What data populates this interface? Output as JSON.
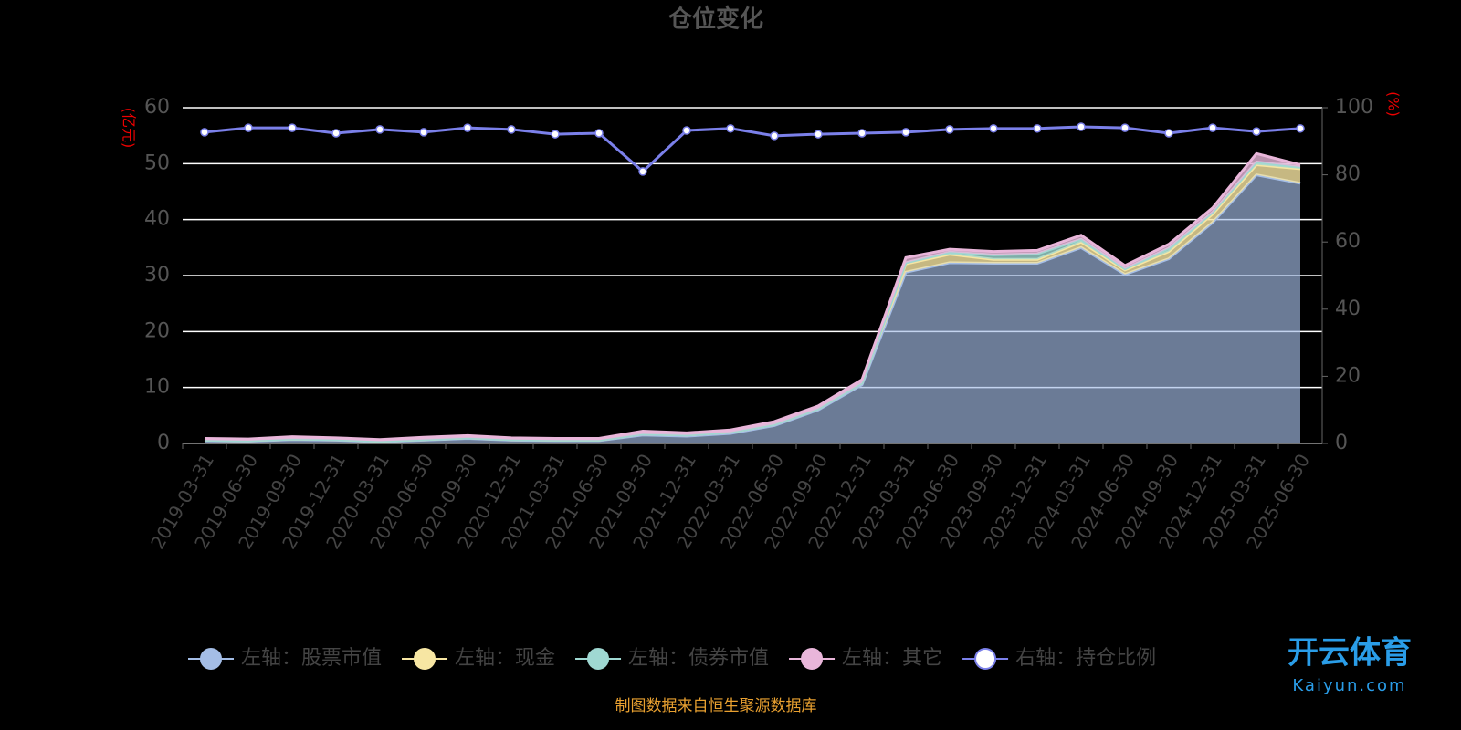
{
  "chart_data": {
    "type": "stacked-area-line",
    "title": "仓位变化",
    "y_label": "(亿元)",
    "y2_label": "(%)",
    "categories": [
      "2019-03-31",
      "2019-06-30",
      "2019-09-30",
      "2019-12-31",
      "2020-03-31",
      "2020-06-30",
      "2020-09-30",
      "2020-12-31",
      "2021-03-31",
      "2021-06-30",
      "2021-09-30",
      "2021-12-31",
      "2022-03-31",
      "2022-06-30",
      "2022-09-30",
      "2022-12-31",
      "2023-03-31",
      "2023-06-30",
      "2023-09-30",
      "2023-12-31",
      "2024-03-31",
      "2024-06-30",
      "2024-09-30",
      "2024-12-31",
      "2025-03-31",
      "2025-06-30"
    ],
    "series": [
      {
        "name": "左轴：股票市值",
        "color": "#a4bde6",
        "axis": "y",
        "values": [
          0.5,
          0.4,
          0.7,
          0.6,
          0.3,
          0.6,
          0.9,
          0.6,
          0.5,
          0.5,
          1.5,
          1.3,
          1.8,
          3.2,
          6.0,
          10.5,
          30.6,
          32.3,
          32.2,
          32.2,
          35.0,
          30.2,
          33.0,
          39.5,
          48.0,
          46.5
        ]
      },
      {
        "name": "左轴：现金",
        "color": "#f7e6a3",
        "axis": "y",
        "values": [
          0.1,
          0.1,
          0.1,
          0.1,
          0.1,
          0.1,
          0.1,
          0.1,
          0.1,
          0.1,
          0.2,
          0.2,
          0.2,
          0.2,
          0.2,
          0.3,
          1.5,
          1.5,
          0.7,
          0.7,
          1.0,
          0.8,
          1.3,
          1.5,
          1.8,
          2.6
        ]
      },
      {
        "name": "左轴：债券市值",
        "color": "#9fd8d2",
        "axis": "y",
        "values": [
          0,
          0,
          0,
          0,
          0,
          0,
          0,
          0,
          0,
          0,
          0,
          0,
          0,
          0,
          0,
          0,
          0.2,
          0.4,
          0.8,
          1.0,
          0.5,
          0.2,
          0.6,
          0.3,
          0.5,
          0.3
        ]
      },
      {
        "name": "左轴：其它",
        "color": "#e9b6da",
        "axis": "y",
        "values": [
          0.3,
          0.3,
          0.4,
          0.3,
          0.3,
          0.4,
          0.4,
          0.3,
          0.3,
          0.3,
          0.5,
          0.4,
          0.4,
          0.5,
          0.5,
          0.6,
          0.9,
          0.5,
          0.6,
          0.6,
          0.7,
          0.6,
          0.7,
          0.8,
          1.5,
          0.4
        ]
      },
      {
        "name": "右轴：持仓比例",
        "color": "#7b80ea",
        "axis": "y2",
        "values": [
          92.7,
          94.0,
          94.0,
          92.4,
          93.5,
          92.7,
          94.0,
          93.5,
          92.1,
          92.4,
          81.0,
          93.2,
          93.8,
          91.6,
          92.1,
          92.4,
          92.7,
          93.5,
          93.8,
          93.8,
          94.3,
          94.0,
          92.4,
          94.0,
          92.9,
          93.8
        ]
      }
    ],
    "ylim": [
      0,
      60
    ],
    "yticks": [
      0,
      10,
      20,
      30,
      40,
      50,
      60
    ],
    "y2lim": [
      0,
      100
    ],
    "y2ticks": [
      0,
      20,
      40,
      60,
      80,
      100
    ],
    "grid": true,
    "source": "制图数据来自恒生聚源数据库",
    "watermark": {
      "name": "开云体育",
      "url": "Kaiyun.com"
    }
  }
}
